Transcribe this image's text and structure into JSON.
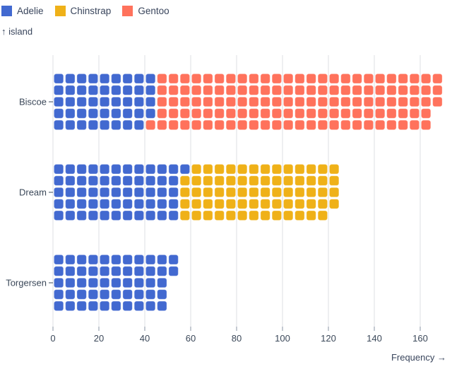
{
  "legend": {
    "items": [
      {
        "label": "Adelie"
      },
      {
        "label": "Chinstrap"
      },
      {
        "label": "Gentoo"
      }
    ]
  },
  "y_axis_label": "↑ island",
  "x_axis_label": "Frequency →",
  "chart_data": {
    "type": "waffle",
    "orientation": "horizontal",
    "unit_value": 1,
    "rows_per_band": 5,
    "categories": [
      "Biscoe",
      "Dream",
      "Torgersen"
    ],
    "series": [
      {
        "name": "Adelie",
        "color": "#4269d0",
        "values": [
          44,
          56,
          52
        ]
      },
      {
        "name": "Chinstrap",
        "color": "#efb118",
        "values": [
          0,
          68,
          0
        ]
      },
      {
        "name": "Gentoo",
        "color": "#ff725c",
        "values": [
          124,
          0,
          0
        ]
      }
    ],
    "totals": [
      168,
      124,
      52
    ],
    "x_ticks": [
      0,
      20,
      40,
      60,
      80,
      100,
      120,
      140,
      160
    ],
    "xlim": [
      0,
      173
    ],
    "xlabel": "Frequency →",
    "ylabel": "↑ island",
    "grid": true,
    "legend_position": "top-left",
    "colors": {
      "text": "#3b4859",
      "grid": "#dcdfe3",
      "tick": "#8995a5",
      "cell_edge": "rgba(255,255,255,0.35)"
    }
  }
}
